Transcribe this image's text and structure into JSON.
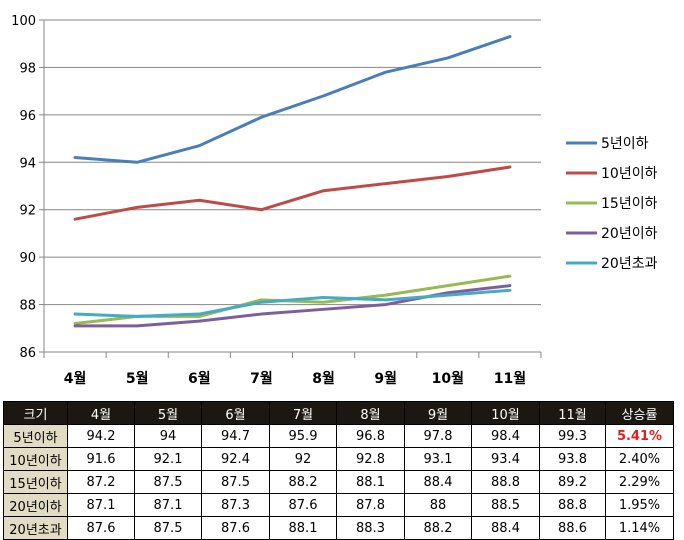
{
  "chart_data": {
    "type": "line",
    "categories": [
      "4월",
      "5월",
      "6월",
      "7월",
      "8월",
      "9월",
      "10월",
      "11월"
    ],
    "ylim": [
      86,
      100
    ],
    "yticks": [
      86,
      88,
      90,
      92,
      94,
      96,
      98,
      100
    ],
    "grid": true,
    "legend": "right",
    "series": [
      {
        "name": "5년이하",
        "color": "#4a7ebb",
        "values": [
          94.2,
          94,
          94.7,
          95.9,
          96.8,
          97.8,
          98.4,
          99.3
        ]
      },
      {
        "name": "10년이하",
        "color": "#be4b48",
        "values": [
          91.6,
          92.1,
          92.4,
          92,
          92.8,
          93.1,
          93.4,
          93.8
        ]
      },
      {
        "name": "15년이하",
        "color": "#98b954",
        "values": [
          87.2,
          87.5,
          87.5,
          88.2,
          88.1,
          88.4,
          88.8,
          89.2
        ]
      },
      {
        "name": "20년이하",
        "color": "#7d5fa0",
        "values": [
          87.1,
          87.1,
          87.3,
          87.6,
          87.8,
          88,
          88.5,
          88.8
        ]
      },
      {
        "name": "20년초과",
        "color": "#46aac5",
        "values": [
          87.6,
          87.5,
          87.6,
          88.1,
          88.3,
          88.2,
          88.4,
          88.6
        ]
      }
    ]
  },
  "table": {
    "headers": [
      "크기",
      "4월",
      "5월",
      "6월",
      "7월",
      "8월",
      "9월",
      "10월",
      "11월",
      "상승률"
    ],
    "rows": [
      {
        "label": "5년이하",
        "values": [
          "94.2",
          "94",
          "94.7",
          "95.9",
          "96.8",
          "97.8",
          "98.4",
          "99.3"
        ],
        "rate": "5.41%"
      },
      {
        "label": "10년이하",
        "values": [
          "91.6",
          "92.1",
          "92.4",
          "92",
          "92.8",
          "93.1",
          "93.4",
          "93.8"
        ],
        "rate": "2.40%"
      },
      {
        "label": "15년이하",
        "values": [
          "87.2",
          "87.5",
          "87.5",
          "88.2",
          "88.1",
          "88.4",
          "88.8",
          "89.2"
        ],
        "rate": "2.29%"
      },
      {
        "label": "20년이하",
        "values": [
          "87.1",
          "87.1",
          "87.3",
          "87.6",
          "87.8",
          "88",
          "88.5",
          "88.8"
        ],
        "rate": "1.95%"
      },
      {
        "label": "20년초과",
        "values": [
          "87.6",
          "87.5",
          "87.6",
          "88.1",
          "88.3",
          "88.2",
          "88.4",
          "88.6"
        ],
        "rate": "1.14%"
      }
    ],
    "highlight_color": "#e02020"
  }
}
